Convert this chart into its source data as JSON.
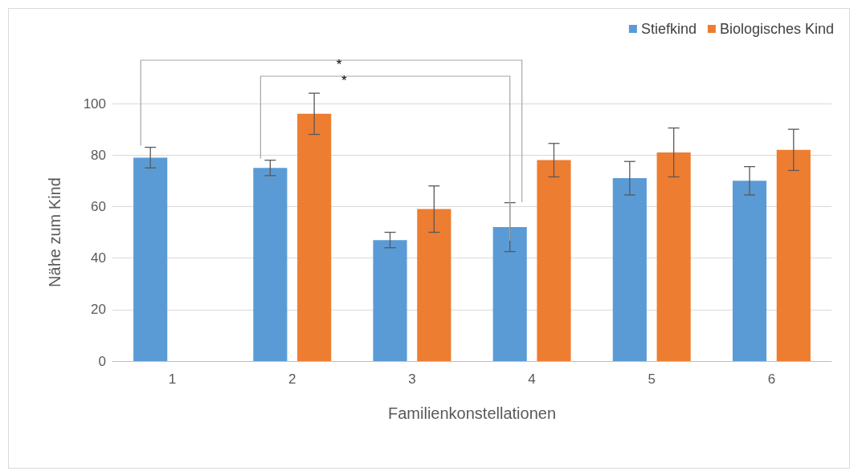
{
  "chart_data": {
    "type": "bar",
    "xlabel": "Familienkonstellationen",
    "ylabel": "Nähe zum Kind",
    "categories": [
      "1",
      "2",
      "3",
      "4",
      "5",
      "6"
    ],
    "series": [
      {
        "name": "Stiefkind",
        "color": "#5b9bd5",
        "values": [
          79,
          75,
          47,
          52,
          71,
          70
        ],
        "errors": [
          4,
          3,
          3,
          9.5,
          6.5,
          5.5
        ]
      },
      {
        "name": "Biologisches Kind",
        "color": "#ed7d31",
        "values": [
          null,
          96,
          59,
          78,
          81,
          82
        ],
        "errors": [
          null,
          8,
          9,
          6.5,
          9.5,
          8
        ]
      }
    ],
    "ylim": [
      0,
      100
    ],
    "yticks": [
      0,
      20,
      40,
      60,
      80,
      100
    ],
    "grid": "y",
    "legend": "top right",
    "annotations": [
      "*",
      "*"
    ]
  }
}
